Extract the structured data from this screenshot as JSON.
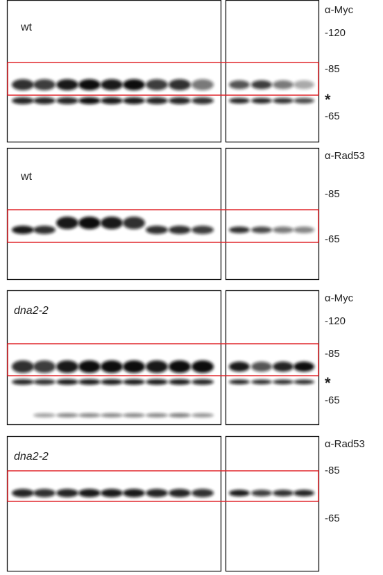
{
  "panels": [
    {
      "sample": "wt",
      "antibody": "α-Myc",
      "markers": [
        "-120",
        "-85",
        "*",
        "-65"
      ]
    },
    {
      "sample": "wt",
      "antibody": "α-Rad53",
      "markers": [
        "-85",
        "-65"
      ]
    },
    {
      "sample": "dna2-2",
      "antibody": "α-Myc",
      "markers": [
        "-120",
        "-85",
        "*",
        "-65"
      ]
    },
    {
      "sample": "dna2-2",
      "antibody": "α-Rad53",
      "markers": [
        "-85",
        "-65"
      ]
    }
  ]
}
